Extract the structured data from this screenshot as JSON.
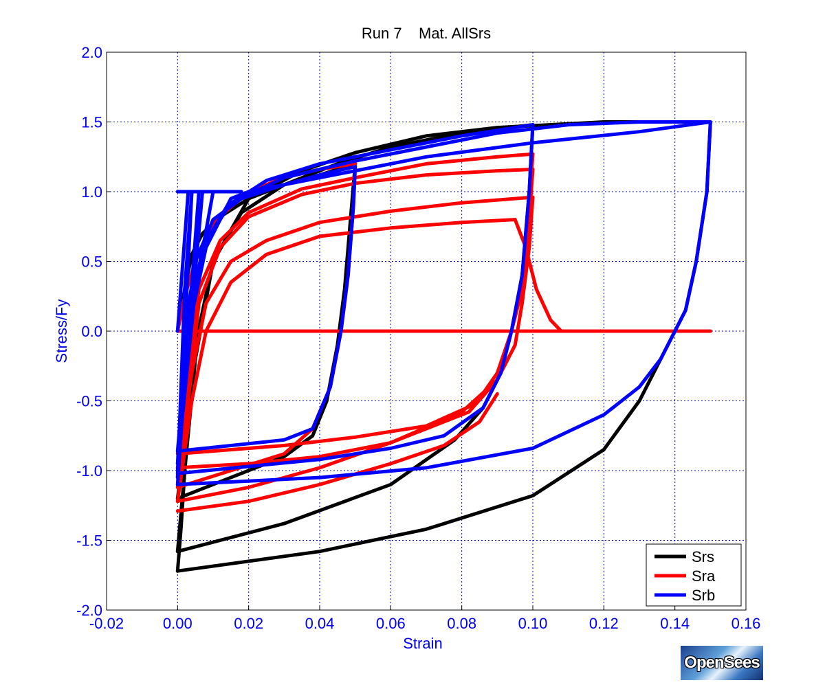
{
  "chart_data": {
    "type": "line",
    "title": "Run 7    Mat. AllSrs",
    "xlabel": "Strain",
    "ylabel": "Stress/Fy",
    "xlim": [
      -0.02,
      0.16
    ],
    "ylim": [
      -2.0,
      2.0
    ],
    "xticks": [
      -0.02,
      0.0,
      0.02,
      0.04,
      0.06,
      0.08,
      0.1,
      0.12,
      0.14,
      0.16
    ],
    "xtick_labels": [
      "-0.02",
      "0.00",
      "0.02",
      "0.04",
      "0.06",
      "0.08",
      "0.10",
      "0.12",
      "0.14",
      "0.16"
    ],
    "yticks": [
      2.0,
      1.5,
      1.0,
      0.5,
      0.0,
      -0.5,
      -1.0,
      -1.5,
      -2.0
    ],
    "ytick_labels": [
      "2.0",
      "1.5",
      "1.0",
      "0.5",
      "0.0",
      "-0.5",
      "-1.0",
      "-1.5",
      "-2.0"
    ],
    "grid": true,
    "legend_position": "bottom-right",
    "series": [
      {
        "name": "Srs",
        "color": "#000000",
        "segments": [
          [
            [
              0.0,
              0.0
            ],
            [
              0.002,
              0.3
            ],
            [
              0.004,
              0.55
            ],
            [
              0.007,
              0.7
            ],
            [
              0.012,
              0.82
            ],
            [
              0.02,
              0.95
            ],
            [
              0.03,
              1.05
            ],
            [
              0.04,
              1.12
            ],
            [
              0.05,
              1.2
            ]
          ],
          [
            [
              0.05,
              1.2
            ],
            [
              0.049,
              0.9
            ],
            [
              0.047,
              0.3
            ],
            [
              0.045,
              -0.1
            ],
            [
              0.042,
              -0.5
            ],
            [
              0.038,
              -0.75
            ],
            [
              0.03,
              -0.9
            ],
            [
              0.015,
              -1.05
            ],
            [
              0.0,
              -1.2
            ]
          ],
          [
            [
              0.0,
              -1.2
            ],
            [
              0.002,
              -0.8
            ],
            [
              0.005,
              -0.1
            ],
            [
              0.01,
              0.5
            ],
            [
              0.018,
              0.85
            ],
            [
              0.03,
              1.05
            ],
            [
              0.045,
              1.2
            ],
            [
              0.06,
              1.32
            ],
            [
              0.08,
              1.42
            ],
            [
              0.1,
              1.48
            ]
          ],
          [
            [
              0.1,
              1.48
            ],
            [
              0.099,
              1.0
            ],
            [
              0.097,
              0.4
            ],
            [
              0.094,
              0.0
            ],
            [
              0.091,
              -0.3
            ],
            [
              0.086,
              -0.55
            ],
            [
              0.078,
              -0.78
            ],
            [
              0.06,
              -1.1
            ],
            [
              0.03,
              -1.38
            ],
            [
              0.0,
              -1.58
            ]
          ],
          [
            [
              0.0,
              -1.58
            ],
            [
              0.002,
              -1.0
            ],
            [
              0.005,
              -0.2
            ],
            [
              0.01,
              0.5
            ],
            [
              0.02,
              0.95
            ],
            [
              0.035,
              1.15
            ],
            [
              0.05,
              1.28
            ],
            [
              0.07,
              1.4
            ],
            [
              0.09,
              1.46
            ],
            [
              0.12,
              1.5
            ],
            [
              0.15,
              1.5
            ]
          ],
          [
            [
              0.15,
              1.5
            ],
            [
              0.149,
              1.0
            ],
            [
              0.146,
              0.5
            ],
            [
              0.143,
              0.15
            ],
            [
              0.14,
              0.0
            ],
            [
              0.136,
              -0.2
            ],
            [
              0.13,
              -0.5
            ],
            [
              0.12,
              -0.85
            ],
            [
              0.1,
              -1.18
            ],
            [
              0.07,
              -1.42
            ],
            [
              0.04,
              -1.58
            ],
            [
              0.0,
              -1.72
            ]
          ],
          [
            [
              0.0,
              -1.72
            ],
            [
              0.001,
              -1.4
            ],
            [
              0.002,
              -1.0
            ]
          ]
        ]
      },
      {
        "name": "Sra",
        "color": "#ff0000",
        "segments": [
          [
            [
              0.0,
              0.0
            ],
            [
              0.002,
              0.25
            ],
            [
              0.005,
              0.5
            ],
            [
              0.01,
              0.78
            ],
            [
              0.02,
              1.0
            ],
            [
              0.03,
              1.1
            ],
            [
              0.04,
              1.16
            ],
            [
              0.05,
              1.2
            ]
          ],
          [
            [
              0.05,
              1.2
            ],
            [
              0.0495,
              0.9
            ],
            [
              0.048,
              0.4
            ],
            [
              0.046,
              0.0
            ],
            [
              0.043,
              -0.4
            ],
            [
              0.038,
              -0.7
            ],
            [
              0.03,
              -0.88
            ],
            [
              0.015,
              -1.0
            ],
            [
              0.0,
              -1.12
            ]
          ],
          [
            [
              0.0,
              -1.12
            ],
            [
              0.003,
              -0.5
            ],
            [
              0.006,
              0.2
            ],
            [
              0.012,
              0.6
            ],
            [
              0.02,
              0.82
            ],
            [
              0.035,
              0.98
            ],
            [
              0.05,
              1.06
            ],
            [
              0.07,
              1.12
            ],
            [
              0.09,
              1.15
            ],
            [
              0.1,
              1.16
            ]
          ],
          [
            [
              0.1,
              1.16
            ],
            [
              0.099,
              0.8
            ],
            [
              0.097,
              0.3
            ],
            [
              0.094,
              0.0
            ],
            [
              0.09,
              -0.3
            ],
            [
              0.084,
              -0.52
            ],
            [
              0.07,
              -0.68
            ],
            [
              0.05,
              -0.76
            ],
            [
              0.03,
              -0.82
            ],
            [
              0.0,
              -0.88
            ]
          ],
          [
            [
              0.0,
              -0.88
            ],
            [
              0.003,
              -0.3
            ],
            [
              0.006,
              0.3
            ],
            [
              0.012,
              0.65
            ],
            [
              0.02,
              0.85
            ],
            [
              0.035,
              1.02
            ],
            [
              0.05,
              1.1
            ],
            [
              0.07,
              1.2
            ],
            [
              0.09,
              1.25
            ],
            [
              0.1,
              1.27
            ]
          ],
          [
            [
              0.1,
              1.27
            ],
            [
              0.099,
              0.9
            ],
            [
              0.097,
              0.4
            ],
            [
              0.094,
              0.0
            ],
            [
              0.09,
              -0.35
            ],
            [
              0.082,
              -0.58
            ],
            [
              0.06,
              -0.8
            ],
            [
              0.04,
              -0.9
            ],
            [
              0.02,
              -0.95
            ],
            [
              0.0,
              -0.98
            ]
          ],
          [
            [
              0.0,
              -0.98
            ],
            [
              0.004,
              -0.3
            ],
            [
              0.008,
              0.2
            ],
            [
              0.015,
              0.5
            ],
            [
              0.025,
              0.65
            ],
            [
              0.04,
              0.78
            ],
            [
              0.06,
              0.86
            ],
            [
              0.08,
              0.92
            ],
            [
              0.1,
              0.96
            ]
          ],
          [
            [
              0.1,
              0.96
            ],
            [
              0.099,
              0.6
            ],
            [
              0.097,
              0.2
            ],
            [
              0.095,
              -0.1
            ],
            [
              0.09,
              -0.35
            ],
            [
              0.08,
              -0.58
            ],
            [
              0.06,
              -0.8
            ],
            [
              0.04,
              -0.98
            ],
            [
              0.02,
              -1.12
            ],
            [
              0.0,
              -1.22
            ]
          ],
          [
            [
              0.0,
              -1.22
            ],
            [
              0.004,
              -0.5
            ],
            [
              0.008,
              0.0
            ],
            [
              0.015,
              0.35
            ],
            [
              0.025,
              0.55
            ],
            [
              0.04,
              0.68
            ],
            [
              0.06,
              0.74
            ],
            [
              0.08,
              0.78
            ],
            [
              0.095,
              0.8
            ]
          ],
          [
            [
              0.095,
              0.8
            ],
            [
              0.098,
              0.6
            ],
            [
              0.101,
              0.3
            ],
            [
              0.105,
              0.08
            ],
            [
              0.108,
              0.0
            ],
            [
              0.15,
              0.0
            ]
          ],
          [
            [
              0.0,
              0.0
            ],
            [
              0.15,
              0.0
            ]
          ],
          [
            [
              0.0,
              -1.29
            ],
            [
              0.02,
              -1.22
            ],
            [
              0.04,
              -1.1
            ],
            [
              0.06,
              -0.95
            ],
            [
              0.075,
              -0.82
            ],
            [
              0.085,
              -0.65
            ],
            [
              0.09,
              -0.45
            ]
          ]
        ]
      },
      {
        "name": "Srb",
        "color": "#0000ff",
        "segments": [
          [
            [
              0.0,
              0.0
            ],
            [
              0.003,
              1.0
            ],
            [
              0.004,
              1.0
            ],
            [
              0.002,
              0.3
            ],
            [
              0.0,
              -1.05
            ]
          ],
          [
            [
              0.0,
              -1.05
            ],
            [
              0.004,
              1.0
            ],
            [
              0.006,
              1.0
            ],
            [
              0.003,
              0.0
            ],
            [
              0.0,
              -1.0
            ]
          ],
          [
            [
              0.0,
              -1.0
            ],
            [
              0.007,
              1.0
            ],
            [
              0.01,
              1.0
            ],
            [
              0.005,
              0.3
            ],
            [
              0.0,
              -0.95
            ]
          ],
          [
            [
              0.0,
              -0.95
            ],
            [
              0.002,
              0.0
            ],
            [
              0.005,
              0.5
            ],
            [
              0.01,
              0.8
            ],
            [
              0.018,
              0.95
            ],
            [
              0.03,
              1.05
            ],
            [
              0.04,
              1.12
            ],
            [
              0.05,
              1.18
            ]
          ],
          [
            [
              0.05,
              1.18
            ],
            [
              0.0495,
              0.9
            ],
            [
              0.048,
              0.4
            ],
            [
              0.046,
              0.0
            ],
            [
              0.043,
              -0.4
            ],
            [
              0.038,
              -0.7
            ],
            [
              0.03,
              -0.78
            ],
            [
              0.015,
              -0.82
            ],
            [
              0.0,
              -0.86
            ]
          ],
          [
            [
              0.0,
              -0.86
            ],
            [
              0.003,
              0.0
            ],
            [
              0.007,
              0.6
            ],
            [
              0.014,
              0.9
            ],
            [
              0.025,
              1.08
            ],
            [
              0.04,
              1.2
            ],
            [
              0.06,
              1.3
            ],
            [
              0.08,
              1.4
            ],
            [
              0.1,
              1.48
            ]
          ],
          [
            [
              0.1,
              1.48
            ],
            [
              0.099,
              1.0
            ],
            [
              0.097,
              0.4
            ],
            [
              0.094,
              0.0
            ],
            [
              0.091,
              -0.3
            ],
            [
              0.086,
              -0.55
            ],
            [
              0.075,
              -0.75
            ],
            [
              0.06,
              -0.84
            ],
            [
              0.04,
              -0.92
            ],
            [
              0.0,
              -1.02
            ]
          ],
          [
            [
              0.0,
              -1.02
            ],
            [
              0.003,
              0.0
            ],
            [
              0.007,
              0.6
            ],
            [
              0.015,
              0.92
            ],
            [
              0.03,
              1.1
            ],
            [
              0.05,
              1.22
            ],
            [
              0.07,
              1.32
            ],
            [
              0.09,
              1.42
            ],
            [
              0.11,
              1.48
            ],
            [
              0.13,
              1.5
            ],
            [
              0.15,
              1.5
            ]
          ],
          [
            [
              0.15,
              1.5
            ],
            [
              0.149,
              1.0
            ],
            [
              0.146,
              0.5
            ],
            [
              0.143,
              0.15
            ],
            [
              0.14,
              0.0
            ],
            [
              0.136,
              -0.2
            ],
            [
              0.13,
              -0.4
            ],
            [
              0.12,
              -0.6
            ],
            [
              0.1,
              -0.84
            ],
            [
              0.07,
              -0.98
            ],
            [
              0.04,
              -1.05
            ],
            [
              0.0,
              -1.1
            ]
          ],
          [
            [
              0.0,
              -1.1
            ],
            [
              0.003,
              0.0
            ],
            [
              0.008,
              0.6
            ],
            [
              0.015,
              0.95
            ],
            [
              0.02,
              1.0
            ],
            [
              0.04,
              1.1
            ],
            [
              0.07,
              1.25
            ],
            [
              0.1,
              1.35
            ],
            [
              0.13,
              1.43
            ],
            [
              0.15,
              1.5
            ]
          ],
          [
            [
              0.0,
              1.0
            ],
            [
              0.018,
              1.0
            ]
          ]
        ]
      }
    ]
  }
}
